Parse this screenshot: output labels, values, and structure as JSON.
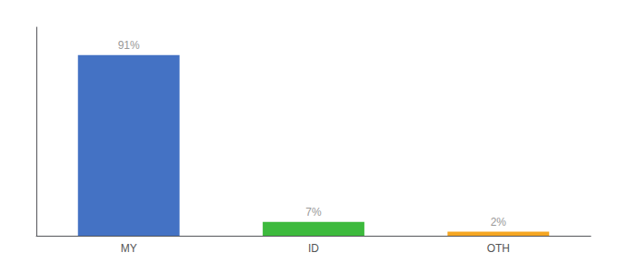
{
  "chart_data": {
    "type": "bar",
    "categories": [
      "MY",
      "ID",
      "OTH"
    ],
    "values": [
      91,
      7,
      2
    ],
    "value_labels": [
      "91%",
      "7%",
      "2%"
    ],
    "colors": [
      "#4472c4",
      "#3dba3d",
      "#f5a623"
    ],
    "ylim": [
      0,
      105
    ],
    "data_labels": true,
    "tick_labels": "x",
    "grid": false
  }
}
